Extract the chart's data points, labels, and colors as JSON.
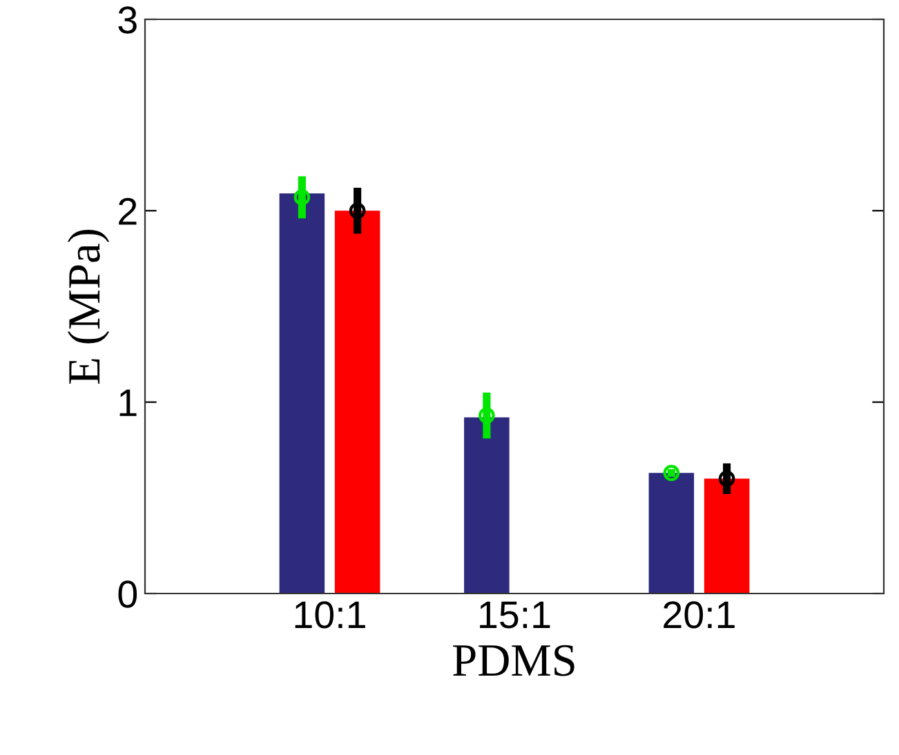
{
  "chart_data": {
    "type": "bar",
    "xlabel": "PDMS",
    "ylabel": "E (MPa)",
    "categories": [
      "10:1",
      "15:1",
      "20:1"
    ],
    "series": [
      {
        "color": "#2e2a7e",
        "values": [
          2.09,
          0.92,
          0.63
        ]
      },
      {
        "color": "#ff0000",
        "values": [
          2.0,
          null,
          0.6
        ]
      },
      {
        "type": "scatter",
        "color": "#00e600",
        "x": [
          "10:1",
          "15:1",
          "20:1"
        ],
        "values": [
          2.07,
          0.93,
          0.63
        ],
        "errors": [
          0.11,
          0.12,
          0.02
        ]
      },
      {
        "type": "scatter",
        "color": "#000000",
        "x": [
          "10:1",
          "15:1",
          "20:1"
        ],
        "values": [
          2.0,
          null,
          0.6
        ],
        "errors": [
          0.12,
          null,
          0.08
        ]
      }
    ],
    "ylim": [
      0,
      3
    ],
    "yticks": [
      0,
      1,
      2,
      3
    ],
    "grid": false,
    "legend": false,
    "marker": "circle"
  }
}
